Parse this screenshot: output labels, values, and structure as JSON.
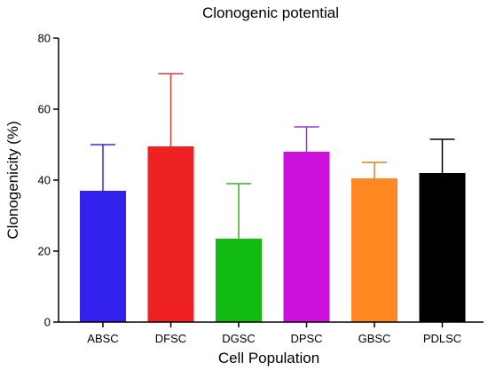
{
  "chart_data": {
    "type": "bar",
    "title": "Clonogenic potential",
    "xlabel": "Cell Population",
    "ylabel": "Clonogenicity (%)",
    "ylim": [
      0,
      80
    ],
    "yticks": [
      0,
      20,
      40,
      60,
      80
    ],
    "grid": false,
    "categories": [
      "ABSC",
      "DFSC",
      "DGSC",
      "DPSC",
      "GBSC",
      "PDLSC"
    ],
    "values": [
      37,
      49.5,
      23.5,
      48,
      40.5,
      42
    ],
    "error_upper": [
      50,
      70,
      39,
      55,
      45,
      51.5
    ],
    "colors": [
      "#3322ee",
      "#ee2222",
      "#11bb11",
      "#cc11dd",
      "#ff8822",
      "#000000"
    ],
    "error_colors": [
      "#4422dd",
      "#cc4433",
      "#44aa22",
      "#9933cc",
      "#cc8822",
      "#000000"
    ]
  }
}
